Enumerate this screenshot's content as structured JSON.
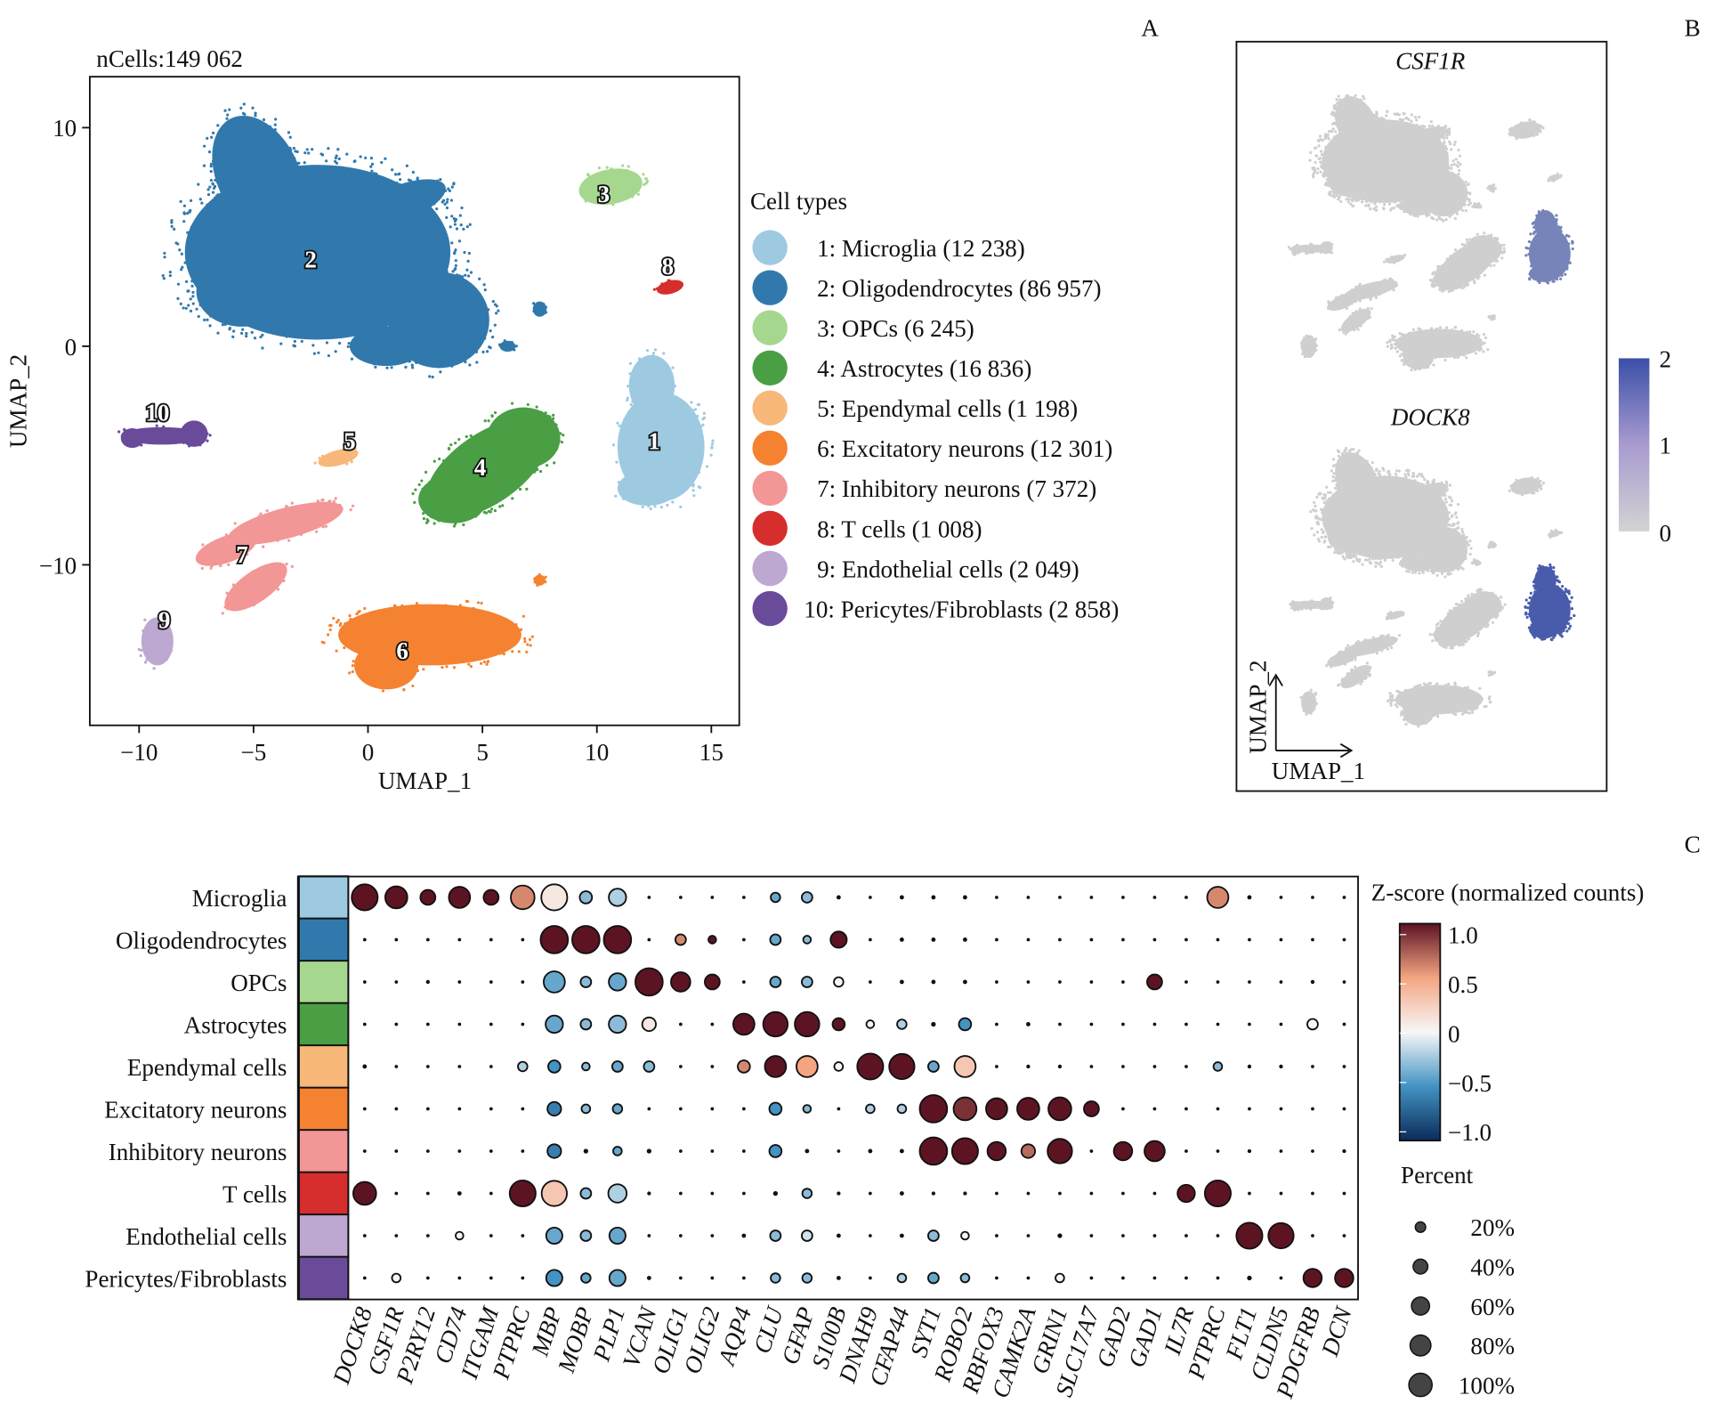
{
  "panel_letters": {
    "a": "A",
    "b": "B",
    "c": "C"
  },
  "chart_data": [
    {
      "type": "scatter",
      "panel": "A",
      "title": "nCells:149 062",
      "xlabel": "UMAP_1",
      "ylabel": "UMAP_2",
      "xlim": [
        -12.2,
        16.2
      ],
      "ylim": [
        -17.3,
        12.3
      ],
      "xticks": [
        -10,
        -5,
        0,
        5,
        10,
        15
      ],
      "xtick_labels": [
        "−10",
        "−5",
        "0",
        "5",
        "10",
        "15"
      ],
      "yticks": [
        10,
        0,
        -10
      ],
      "ytick_labels": [
        "10",
        "0",
        "−10"
      ],
      "grid": false,
      "legend_title": "Cell types",
      "legend_position": "right",
      "clusters": [
        {
          "id": "1",
          "label": "1: Microglia (12 238)",
          "color": "#9ecae1",
          "center": [
            12.5,
            -4.3
          ]
        },
        {
          "id": "2",
          "label": "2: Oligodendrocytes (86 957)",
          "color": "#3179ad",
          "center": [
            -2.5,
            4
          ]
        },
        {
          "id": "3",
          "label": "3: OPCs (6 245)",
          "color": "#a6d78f",
          "center": [
            10.3,
            7
          ]
        },
        {
          "id": "4",
          "label": "4: Astrocytes (16 836)",
          "color": "#4a9e44",
          "center": [
            4.9,
            -5.5
          ]
        },
        {
          "id": "5",
          "label": "5: Ependymal cells (1 198)",
          "color": "#f7b879",
          "center": [
            -0.8,
            -4.3
          ]
        },
        {
          "id": "6",
          "label": "6: Excitatory neurons (12 301)",
          "color": "#f58231",
          "center": [
            1.5,
            -13.9
          ]
        },
        {
          "id": "7",
          "label": "7: Inhibitory neurons (7 372)",
          "color": "#f39696",
          "center": [
            -5.5,
            -9.5
          ]
        },
        {
          "id": "8",
          "label": "8: T cells (1 008)",
          "color": "#d62d2d",
          "center": [
            13.1,
            3.7
          ]
        },
        {
          "id": "9",
          "label": "9: Endothelial cells (2 049)",
          "color": "#bca8d0",
          "center": [
            -8.9,
            -12.5
          ]
        },
        {
          "id": "10",
          "label": "10: Pericytes/Fibroblasts (2 858)",
          "color": "#6a4b9a",
          "center": [
            -9.2,
            -3
          ]
        }
      ]
    },
    {
      "type": "scatter",
      "panel": "B",
      "subplots": [
        {
          "gene": "CSF1R",
          "high_cluster": "1",
          "high_level": 1.2
        },
        {
          "gene": "DOCK8",
          "high_cluster": "1",
          "high_level": 1.8
        }
      ],
      "xlabel": "UMAP_1",
      "ylabel": "UMAP_2",
      "colorbar": {
        "ticks": [
          "2",
          "1",
          "0"
        ],
        "range": [
          0,
          2
        ],
        "low_color": "#d3d3d3",
        "high_color": "#3a4fa8"
      }
    },
    {
      "type": "dotplot",
      "panel": "C",
      "rows": [
        "Microglia",
        "Oligodendrocytes",
        "OPCs",
        "Astrocytes",
        "Ependymal cells",
        "Excitatory neurons",
        "Inhibitory neurons",
        "T cells",
        "Endothelial cells",
        "Pericytes/Fibroblasts"
      ],
      "row_colors": [
        "#9ecae1",
        "#3179ad",
        "#a6d78f",
        "#4a9e44",
        "#f7b879",
        "#f58231",
        "#f39696",
        "#d62d2d",
        "#bca8d0",
        "#6a4b9a"
      ],
      "genes": [
        "DOCK8",
        "CSF1R",
        "P2RY12",
        "CD74",
        "ITGAM",
        "PTPRC",
        "MBP",
        "MOBP",
        "PLP1",
        "VCAN",
        "OLIG1",
        "OLIG2",
        "AQP4",
        "CLU",
        "GFAP",
        "S100B",
        "DNAH9",
        "CFAP44",
        "SYT1",
        "ROBO2",
        "RBFOX3",
        "CAMK2A",
        "GRIN1",
        "SLC17A7",
        "GAD2",
        "GAD1",
        "IL7R",
        "PTPRC",
        "FLT1",
        "CLDN5",
        "PDGFRB",
        "DCN"
      ],
      "colorbar_title": "Z-score (normalized counts)",
      "colorbar_ticks": [
        "1.0",
        "0.5",
        "0",
        "−0.5",
        "−1.0"
      ],
      "colorbar_range": [
        -1,
        1
      ],
      "size_title": "Percent",
      "size_legend": [
        {
          "pct": 20,
          "label": "20%"
        },
        {
          "pct": 40,
          "label": "40%"
        },
        {
          "pct": 60,
          "label": "60%"
        },
        {
          "pct": 80,
          "label": "80%"
        },
        {
          "pct": 100,
          "label": "100%"
        }
      ],
      "pct": [
        [
          90,
          65,
          30,
          60,
          30,
          75,
          90,
          20,
          40,
          3,
          3,
          3,
          3,
          12,
          15,
          5,
          3,
          5,
          5,
          5,
          3,
          3,
          3,
          3,
          3,
          3,
          3,
          60,
          5,
          3,
          3,
          3
        ],
        [
          3,
          3,
          3,
          3,
          3,
          3,
          100,
          100,
          100,
          3,
          15,
          8,
          3,
          15,
          8,
          35,
          3,
          5,
          5,
          5,
          3,
          3,
          3,
          3,
          3,
          3,
          3,
          3,
          3,
          3,
          3,
          3
        ],
        [
          3,
          3,
          4,
          3,
          3,
          3,
          60,
          15,
          40,
          100,
          50,
          30,
          3,
          15,
          15,
          12,
          3,
          5,
          5,
          5,
          3,
          3,
          3,
          3,
          3,
          30,
          3,
          3,
          3,
          3,
          4,
          3
        ],
        [
          3,
          3,
          3,
          3,
          3,
          3,
          40,
          15,
          40,
          25,
          3,
          3,
          60,
          80,
          80,
          20,
          8,
          12,
          6,
          20,
          3,
          5,
          3,
          3,
          3,
          3,
          3,
          3,
          3,
          3,
          15,
          3
        ],
        [
          5,
          3,
          3,
          3,
          3,
          12,
          20,
          8,
          15,
          15,
          3,
          3,
          20,
          60,
          60,
          10,
          90,
          85,
          15,
          60,
          3,
          4,
          4,
          3,
          3,
          3,
          3,
          10,
          4,
          4,
          3,
          3
        ],
        [
          3,
          3,
          3,
          3,
          3,
          3,
          25,
          10,
          12,
          3,
          3,
          3,
          3,
          20,
          8,
          3,
          10,
          10,
          100,
          70,
          60,
          65,
          70,
          30,
          3,
          3,
          3,
          3,
          3,
          3,
          3,
          3
        ],
        [
          3,
          3,
          3,
          3,
          3,
          3,
          25,
          6,
          10,
          6,
          3,
          3,
          3,
          20,
          5,
          3,
          5,
          5,
          100,
          90,
          45,
          25,
          80,
          3,
          45,
          55,
          3,
          3,
          4,
          3,
          3,
          4
        ],
        [
          70,
          3,
          3,
          5,
          3,
          90,
          85,
          15,
          45,
          4,
          3,
          3,
          3,
          6,
          12,
          4,
          3,
          5,
          4,
          4,
          3,
          3,
          3,
          3,
          3,
          3,
          40,
          90,
          3,
          3,
          3,
          3
        ],
        [
          3,
          3,
          3,
          8,
          3,
          3,
          35,
          15,
          35,
          3,
          3,
          3,
          5,
          15,
          15,
          5,
          3,
          5,
          15,
          8,
          3,
          3,
          6,
          3,
          3,
          3,
          3,
          3,
          90,
          85,
          3,
          3
        ],
        [
          3,
          10,
          3,
          3,
          3,
          3,
          35,
          12,
          35,
          5,
          3,
          3,
          3,
          12,
          12,
          5,
          3,
          10,
          15,
          10,
          3,
          3,
          10,
          3,
          3,
          3,
          3,
          3,
          6,
          3,
          45,
          45
        ]
      ],
      "zscore": [
        [
          1,
          1,
          1,
          1,
          1,
          0.6,
          0.1,
          -0.3,
          -0.2,
          0,
          0,
          0,
          0,
          -0.4,
          -0.3,
          0,
          0,
          0,
          0,
          0,
          0,
          0,
          0,
          0,
          0,
          0,
          0,
          0.6,
          0,
          0,
          0,
          0
        ],
        [
          0,
          0,
          0,
          0,
          0,
          0,
          1,
          1,
          1,
          0,
          0.6,
          1,
          0,
          -0.4,
          -0.3,
          1,
          0,
          0,
          0,
          0,
          0,
          0,
          0,
          0,
          0,
          0,
          0,
          0,
          0,
          0,
          0,
          0
        ],
        [
          0,
          0,
          0,
          0,
          0,
          0,
          -0.4,
          -0.3,
          -0.4,
          1,
          1,
          1,
          0,
          -0.4,
          -0.3,
          0,
          0,
          0,
          0,
          0,
          0,
          0,
          0,
          0,
          0,
          1,
          0,
          0,
          0,
          0,
          0,
          0
        ],
        [
          0,
          0,
          0,
          0,
          0,
          0,
          -0.4,
          -0.3,
          -0.3,
          0.1,
          0,
          0,
          1,
          1,
          1,
          1,
          0,
          -0.2,
          0,
          -0.5,
          0,
          0,
          0,
          0,
          0,
          0,
          0,
          0,
          0,
          0,
          0,
          0
        ],
        [
          0,
          0,
          0,
          0,
          0,
          -0.2,
          -0.5,
          -0.3,
          -0.4,
          -0.3,
          0,
          0,
          0.6,
          1,
          0.5,
          0,
          1,
          1,
          -0.4,
          0.3,
          0,
          0,
          0,
          0,
          0,
          0,
          0,
          -0.3,
          0,
          0,
          0,
          0
        ],
        [
          0,
          0,
          0,
          0,
          0,
          0,
          -0.6,
          -0.3,
          -0.4,
          0,
          0,
          0,
          0,
          -0.5,
          -0.3,
          0,
          -0.2,
          -0.2,
          1,
          0.9,
          1,
          1,
          1,
          1,
          0,
          0,
          0,
          0,
          0,
          0,
          0,
          0
        ],
        [
          0,
          0,
          0,
          0,
          0,
          0,
          -0.6,
          -0.3,
          -0.4,
          0,
          0,
          0,
          0,
          -0.5,
          -0.3,
          0,
          0,
          0,
          1,
          1,
          1,
          0.7,
          1,
          0,
          1,
          1,
          0,
          0,
          0,
          0,
          0,
          0
        ],
        [
          1,
          0,
          0,
          0,
          0,
          1,
          0.3,
          -0.3,
          -0.2,
          0,
          0,
          0,
          0,
          0,
          -0.3,
          0,
          0,
          0,
          0,
          0,
          0,
          0,
          0,
          0,
          0,
          0,
          1,
          1,
          0,
          0,
          0,
          0
        ],
        [
          0,
          0,
          0,
          0,
          0,
          0,
          -0.4,
          -0.3,
          -0.4,
          0,
          0,
          0,
          0,
          -0.3,
          -0.1,
          0,
          0,
          0,
          -0.3,
          0,
          0,
          0,
          0,
          0,
          0,
          0,
          0,
          0,
          1,
          1,
          0,
          0
        ],
        [
          0,
          0,
          0,
          0,
          0,
          0,
          -0.5,
          -0.4,
          -0.4,
          0,
          0,
          0,
          0,
          -0.3,
          -0.3,
          0,
          0,
          -0.2,
          -0.4,
          -0.3,
          0,
          0,
          0,
          0,
          0,
          0,
          0,
          0,
          0,
          0,
          1,
          1
        ]
      ]
    }
  ]
}
